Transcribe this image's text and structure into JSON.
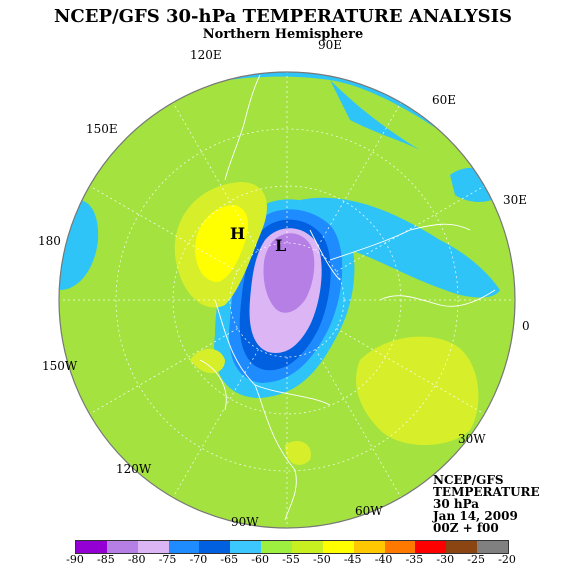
{
  "title": "NCEP/GFS 30-hPa TEMPERATURE ANALYSIS",
  "subtitle": "Northern Hemisphere",
  "longitude_labels": [
    "90E",
    "60E",
    "30E",
    "0",
    "30W",
    "60W",
    "90W",
    "120W",
    "150W",
    "180",
    "150E",
    "120E"
  ],
  "centers": {
    "high": "H",
    "low": "L"
  },
  "info_block": [
    "NCEP/GFS",
    "TEMPERATURE",
    "30 hPa",
    "Jan 14, 2009",
    "00Z + f00"
  ],
  "legend": {
    "ticks": [
      "-90",
      "-85",
      "-80",
      "-75",
      "-70",
      "-65",
      "-60",
      "-55",
      "-50",
      "-45",
      "-40",
      "-35",
      "-30",
      "-25",
      "-20"
    ],
    "colors": [
      "#9400d3",
      "#b57fe5",
      "#dcb5f5",
      "#1e8cff",
      "#0060e0",
      "#3cc8ff",
      "#9ef040",
      "#c8f020",
      "#ffff00",
      "#ffc800",
      "#ff7800",
      "#ff0000",
      "#8b4513",
      "#808080"
    ]
  },
  "colors": {
    "background_field": "#a3e23f",
    "cold_band": "#2fc4f8",
    "warm_band": "#d6ef2a",
    "warm_core": "#ffff00",
    "coastline": "#ffffff"
  }
}
